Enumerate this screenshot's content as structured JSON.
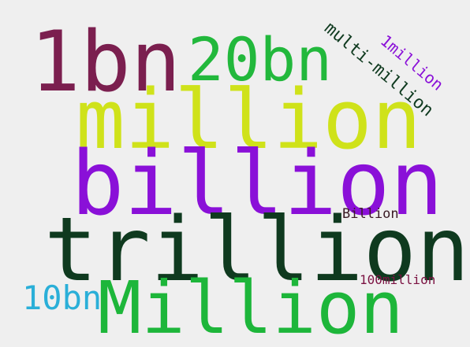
{
  "background_color": "#efefef",
  "words": {
    "w1bn": {
      "text": "1bn",
      "color": "#7b1f4f"
    },
    "w20bn": {
      "text": "20bn",
      "color": "#22b83c"
    },
    "million": {
      "text": "million",
      "color": "#cfe21a"
    },
    "billion": {
      "text": "billion",
      "color": "#8a10d8"
    },
    "trillion": {
      "text": "trillion",
      "color": "#0f3a1f"
    },
    "Million": {
      "text": "Million",
      "color": "#1db63a"
    },
    "w10bn": {
      "text": "10bn",
      "color": "#2aafd8"
    },
    "Billion": {
      "text": "Billion",
      "color": "#3a1a24"
    },
    "w100million": {
      "text": "100million",
      "color": "#7b1242"
    },
    "multi": {
      "text": "multi-million",
      "color": "#0f3a1f"
    },
    "w1million": {
      "text": "1million",
      "color": "#8a10d8"
    }
  }
}
